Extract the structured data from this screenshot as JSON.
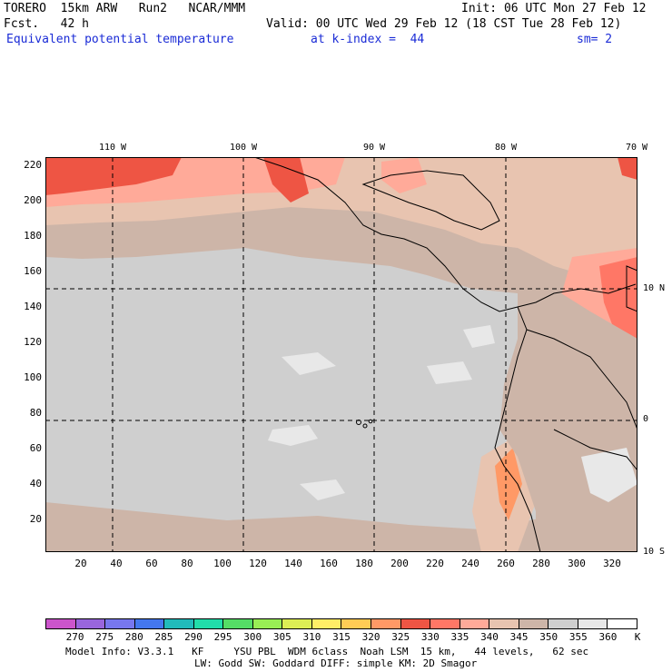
{
  "header": {
    "model": "TORERO  15km ARW   Run2   NCAR/MMM",
    "init": "Init: 06 UTC Mon 27 Feb 12",
    "fcst": "Fcst.   42 h",
    "valid": "Valid: 00 UTC Wed 29 Feb 12 (18 CST Tue 28 Feb 12)",
    "field": "Equivalent potential temperature",
    "kindex": "at k-index =  44",
    "smooth": "sm= 2"
  },
  "map": {
    "longitude_labels": [
      "110 W",
      "100 W",
      "90 W",
      "80 W",
      "70 W"
    ],
    "latitude_labels": [
      "10 N",
      "0",
      "10 S"
    ],
    "y_ticks": [
      "220",
      "200",
      "180",
      "160",
      "140",
      "120",
      "100",
      "80",
      "60",
      "40",
      "20"
    ],
    "x_ticks": [
      "20",
      "40",
      "60",
      "80",
      "100",
      "120",
      "140",
      "160",
      "180",
      "200",
      "220",
      "240",
      "260",
      "280",
      "300",
      "320"
    ]
  },
  "legend": {
    "labels": [
      "270",
      "275",
      "280",
      "285",
      "290",
      "295",
      "300",
      "305",
      "310",
      "315",
      "320",
      "325",
      "330",
      "335",
      "340",
      "345",
      "350",
      "355",
      "360",
      "K"
    ],
    "colors": [
      "#cc55cc",
      "#9966dd",
      "#7777ee",
      "#4477ee",
      "#22bbbb",
      "#22ddaa",
      "#55dd66",
      "#99ee55",
      "#ddee55",
      "#ffee66",
      "#ffcc55",
      "#ff9966",
      "#ee5544",
      "#ff7766",
      "#ffaa99",
      "#e8c4b0",
      "#cdb5a8",
      "#cfcfcf",
      "#e8e8e8",
      "#ffffff"
    ]
  },
  "footer": {
    "line1": "Model Info: V3.3.1   KF     YSU PBL  WDM 6class  Noah LSM  15 km,   44 levels,   62 sec",
    "line2": "LW: Godd SW: Goddard DIFF: simple KM: 2D Smagor"
  }
}
